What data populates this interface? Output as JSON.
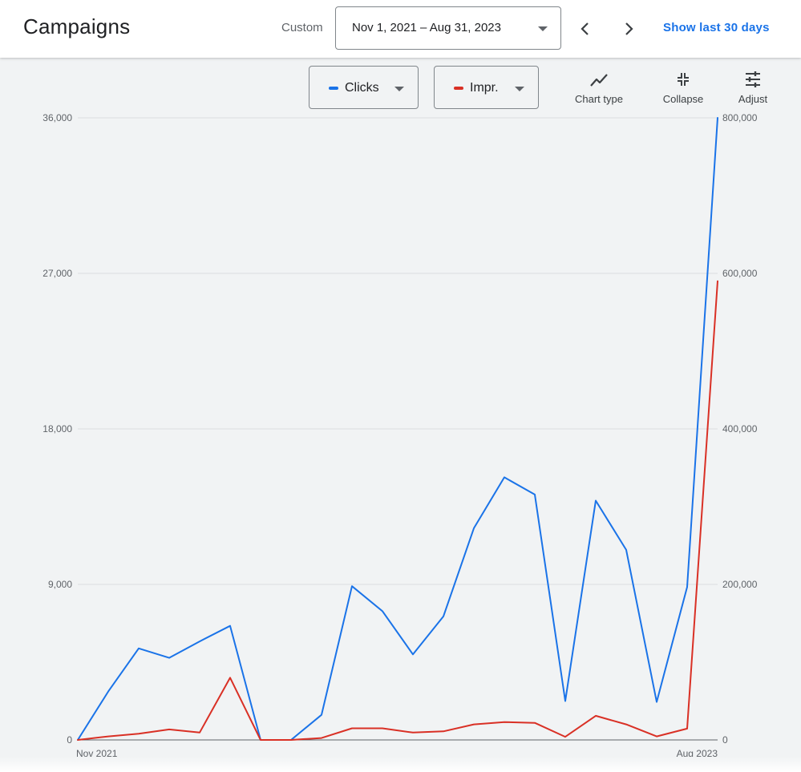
{
  "header": {
    "title": "Campaigns",
    "range_label": "Custom",
    "date_range": "Nov 1, 2021 – Aug 31, 2023",
    "prev_icon": "chevron-left-icon",
    "next_icon": "chevron-right-icon",
    "show_last_label": "Show last 30 days"
  },
  "toolbar": {
    "metric1": {
      "label": "Clicks",
      "color": "#1a73e8"
    },
    "metric2": {
      "label": "Impr.",
      "color": "#d93025"
    },
    "chart_type_label": "Chart type",
    "collapse_label": "Collapse",
    "adjust_label": "Adjust"
  },
  "chart_data": {
    "type": "line",
    "x": [
      "Nov 2021",
      "Dec 2021",
      "Jan 2022",
      "Feb 2022",
      "Mar 2022",
      "Apr 2022",
      "May 2022",
      "Jun 2022",
      "Jul 2022",
      "Aug 2022",
      "Sep 2022",
      "Oct 2022",
      "Nov 2022",
      "Dec 2022",
      "Jan 2023",
      "Feb 2023",
      "Mar 2023",
      "Apr 2023",
      "May 2023",
      "Jun 2023",
      "Jul 2023",
      "Aug 2023"
    ],
    "x_tick_labels": [
      "Nov 2021",
      "Aug 2023"
    ],
    "series": [
      {
        "name": "Clicks",
        "axis": "left",
        "color": "#1a73e8",
        "values": [
          0,
          2800,
          5300,
          4750,
          5700,
          6600,
          0,
          0,
          1450,
          8900,
          7450,
          4950,
          7150,
          12250,
          15200,
          14200,
          2250,
          13850,
          11000,
          2200,
          8850,
          36000
        ]
      },
      {
        "name": "Impr.",
        "axis": "right",
        "color": "#d93025",
        "values": [
          0,
          4500,
          8000,
          13500,
          9500,
          80000,
          0,
          0,
          2500,
          15000,
          15000,
          9500,
          11000,
          20000,
          23000,
          22000,
          4000,
          31000,
          20000,
          4500,
          14500,
          590000
        ]
      }
    ],
    "y_left": {
      "ticks": [
        "0",
        "9,000",
        "18,000",
        "27,000",
        "36,000"
      ],
      "range": [
        0,
        36000
      ]
    },
    "y_right": {
      "ticks": [
        "0",
        "200,000",
        "400,000",
        "600,000",
        "800,000"
      ],
      "range": [
        0,
        800000
      ]
    },
    "grid": true
  }
}
